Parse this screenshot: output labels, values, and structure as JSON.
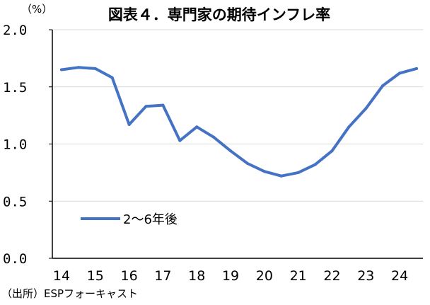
{
  "chart_data": {
    "type": "line",
    "title": "図表４．専門家の期待インフレ率",
    "ylabel": "（%）",
    "xlabel": "",
    "source": "（出所）ESPフォーキャスト",
    "ylim": [
      0.0,
      2.0
    ],
    "y_ticks": [
      "0.0",
      "0.5",
      "1.0",
      "1.5",
      "2.0"
    ],
    "x_ticks": [
      "14",
      "15",
      "16",
      "17",
      "18",
      "19",
      "20",
      "21",
      "22",
      "23",
      "24"
    ],
    "grid": true,
    "legend_position": "lower-left",
    "colors": {
      "series": "#4472C4",
      "grid": "#d9d9d9",
      "axis": "#000000"
    },
    "series": [
      {
        "name": "2～6年後",
        "x": [
          14.0,
          14.5,
          15.0,
          15.5,
          16.0,
          16.5,
          17.0,
          17.5,
          18.0,
          18.5,
          19.0,
          19.5,
          20.0,
          20.5,
          21.0,
          21.5,
          22.0,
          22.5,
          23.0,
          23.5,
          24.0,
          24.5
        ],
        "values": [
          1.65,
          1.67,
          1.66,
          1.58,
          1.17,
          1.33,
          1.34,
          1.03,
          1.15,
          1.06,
          0.94,
          0.83,
          0.76,
          0.72,
          0.75,
          0.82,
          0.94,
          1.15,
          1.31,
          1.51,
          1.62,
          1.66
        ]
      }
    ]
  }
}
